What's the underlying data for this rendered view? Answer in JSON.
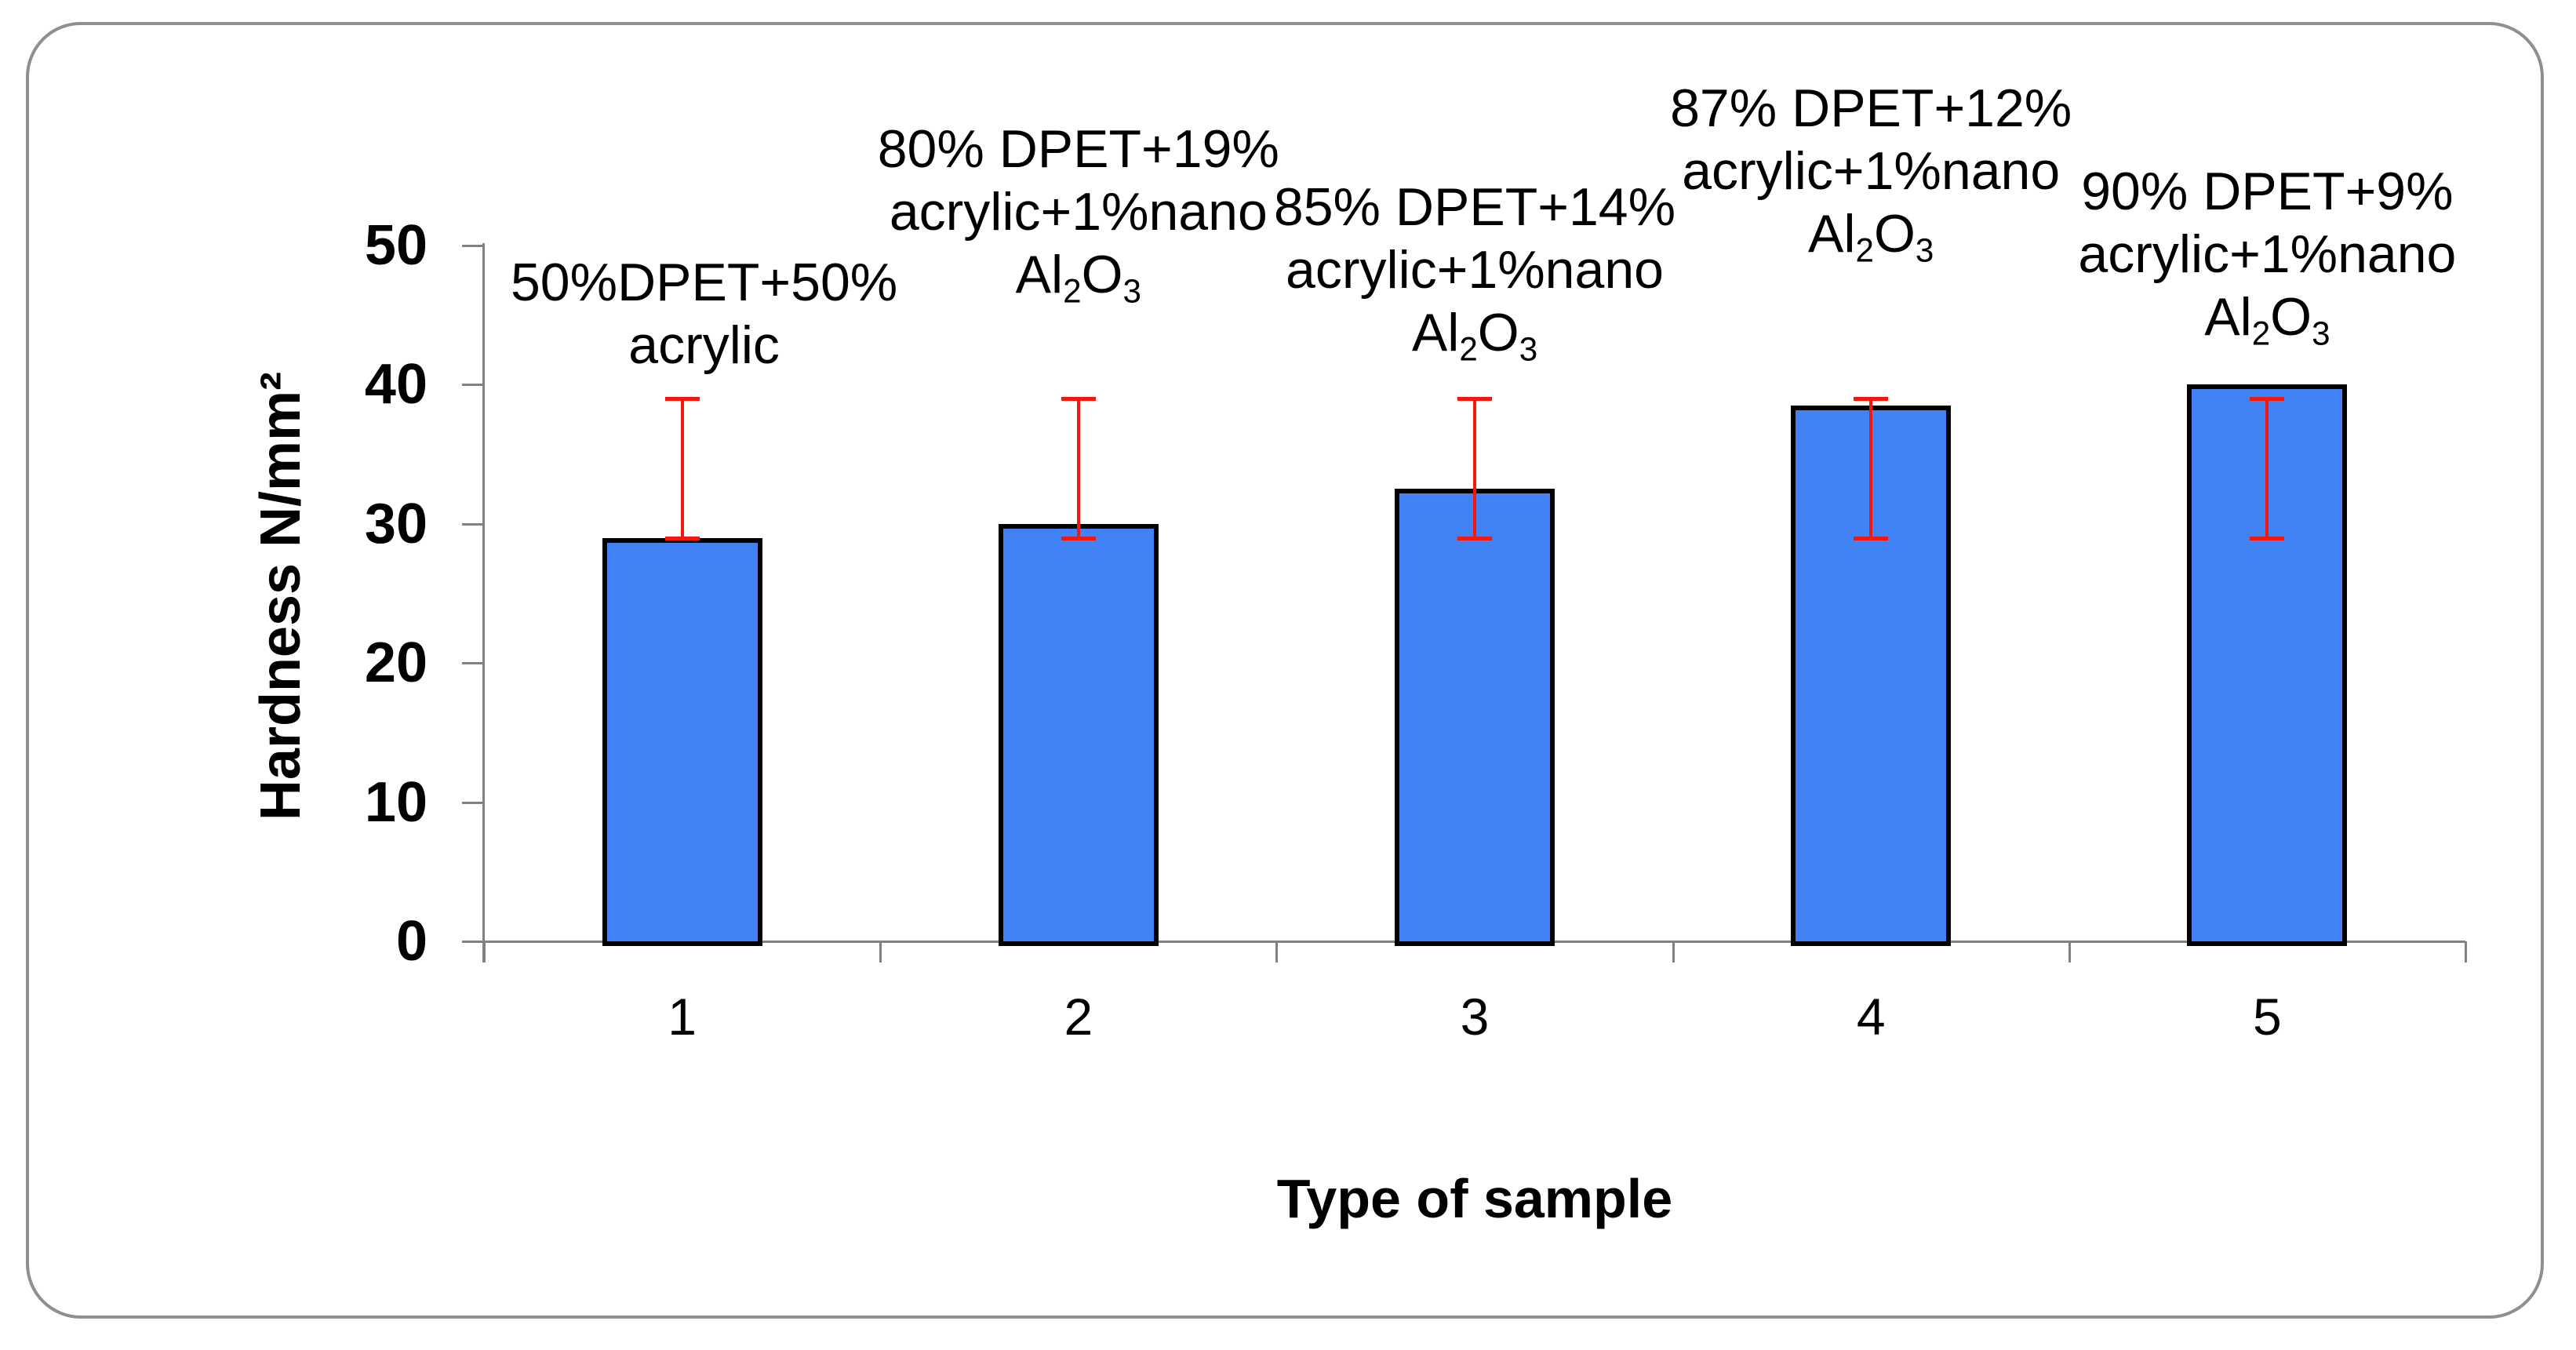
{
  "chart_data": {
    "type": "bar",
    "title": "",
    "xlabel": "Type of sample",
    "ylabel": "Hardness N/mm²",
    "categories": [
      "1",
      "2",
      "3",
      "4",
      "5"
    ],
    "values": [
      29,
      30,
      32.5,
      38.5,
      40
    ],
    "error_low": [
      29,
      29,
      29,
      29,
      29
    ],
    "error_high": [
      39,
      39,
      39,
      39,
      39
    ],
    "ylim": [
      0,
      50
    ],
    "yticks": [
      0,
      10,
      20,
      30,
      40,
      50
    ],
    "grid": false,
    "legend": false,
    "annotations": [
      {
        "lines": [
          "50%DPET+50%",
          "acrylic"
        ]
      },
      {
        "lines": [
          "80% DPET+19%",
          "acrylic+1%nano",
          "Al₂O₃"
        ]
      },
      {
        "lines": [
          "85% DPET+14%",
          "acrylic+1%nano",
          "Al₂O₃"
        ]
      },
      {
        "lines": [
          "87% DPET+12%",
          "acrylic+1%nano",
          "Al₂O₃"
        ]
      },
      {
        "lines": [
          "90% DPET+9%",
          "acrylic+1%nano",
          "Al₂O₃"
        ]
      }
    ],
    "colors": {
      "bar_fill": "#4182F5",
      "bar_border": "#000000",
      "error_bar": "#F2180D",
      "axis": "#808080",
      "text": "#000000",
      "frame_border": "#8F8F8F"
    }
  }
}
